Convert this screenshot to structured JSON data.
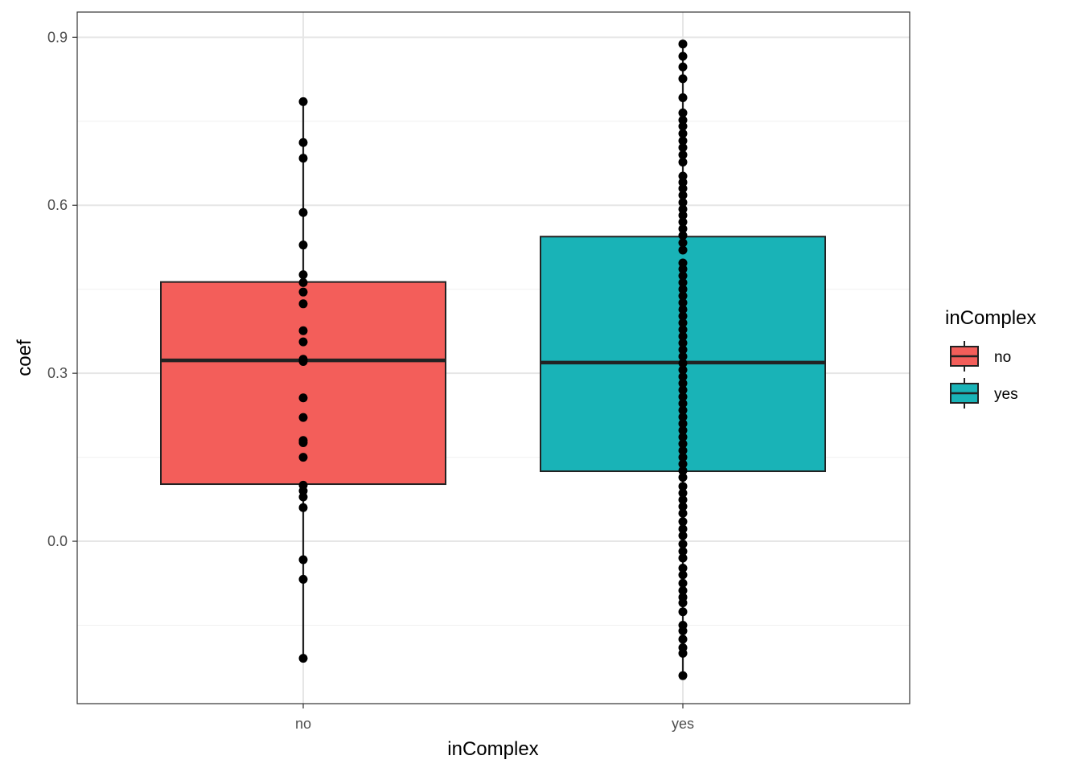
{
  "chart_data": {
    "type": "box",
    "xlabel": "inComplex",
    "ylabel": "coef",
    "categories": [
      "no",
      "yes"
    ],
    "ylim": [
      -0.29,
      0.945
    ],
    "yticks": [
      0.0,
      0.3,
      0.6,
      0.9
    ],
    "ytick_labels": [
      "0.0",
      "0.3",
      "0.6",
      "0.9"
    ],
    "grid": true,
    "legend": {
      "title": "inComplex",
      "position": "right",
      "entries": [
        {
          "label": "no",
          "color": "#F35E5A"
        },
        {
          "label": "yes",
          "color": "#19B3B7"
        }
      ]
    },
    "boxes": [
      {
        "category": "no",
        "color": "#F35E5A",
        "q1": 0.102,
        "median": 0.323,
        "q3": 0.463,
        "whisker_low": -0.209,
        "whisker_high": 0.785,
        "points": [
          0.785,
          0.712,
          0.684,
          0.587,
          0.529,
          0.476,
          0.462,
          0.445,
          0.424,
          0.376,
          0.356,
          0.325,
          0.321,
          0.256,
          0.221,
          0.18,
          0.176,
          0.15,
          0.1,
          0.09,
          0.079,
          0.06,
          -0.033,
          -0.068,
          -0.209
        ]
      },
      {
        "category": "yes",
        "color": "#19B3B7",
        "q1": 0.125,
        "median": 0.319,
        "q3": 0.544,
        "whisker_low": -0.24,
        "whisker_high": 0.888,
        "points": [
          0.888,
          0.866,
          0.847,
          0.826,
          0.792,
          0.765,
          0.752,
          0.741,
          0.728,
          0.715,
          0.703,
          0.69,
          0.677,
          0.652,
          0.641,
          0.63,
          0.618,
          0.605,
          0.593,
          0.582,
          0.57,
          0.558,
          0.546,
          0.533,
          0.52,
          0.497,
          0.486,
          0.474,
          0.462,
          0.45,
          0.438,
          0.426,
          0.414,
          0.402,
          0.39,
          0.378,
          0.366,
          0.354,
          0.342,
          0.33,
          0.318,
          0.306,
          0.294,
          0.282,
          0.27,
          0.258,
          0.246,
          0.234,
          0.222,
          0.21,
          0.198,
          0.186,
          0.174,
          0.162,
          0.15,
          0.138,
          0.126,
          0.114,
          0.098,
          0.086,
          0.074,
          0.062,
          0.05,
          0.035,
          0.022,
          0.01,
          -0.005,
          -0.018,
          -0.03,
          -0.048,
          -0.06,
          -0.075,
          -0.088,
          -0.1,
          -0.11,
          -0.126,
          -0.15,
          -0.16,
          -0.175,
          -0.19,
          -0.2,
          -0.24
        ]
      }
    ]
  }
}
